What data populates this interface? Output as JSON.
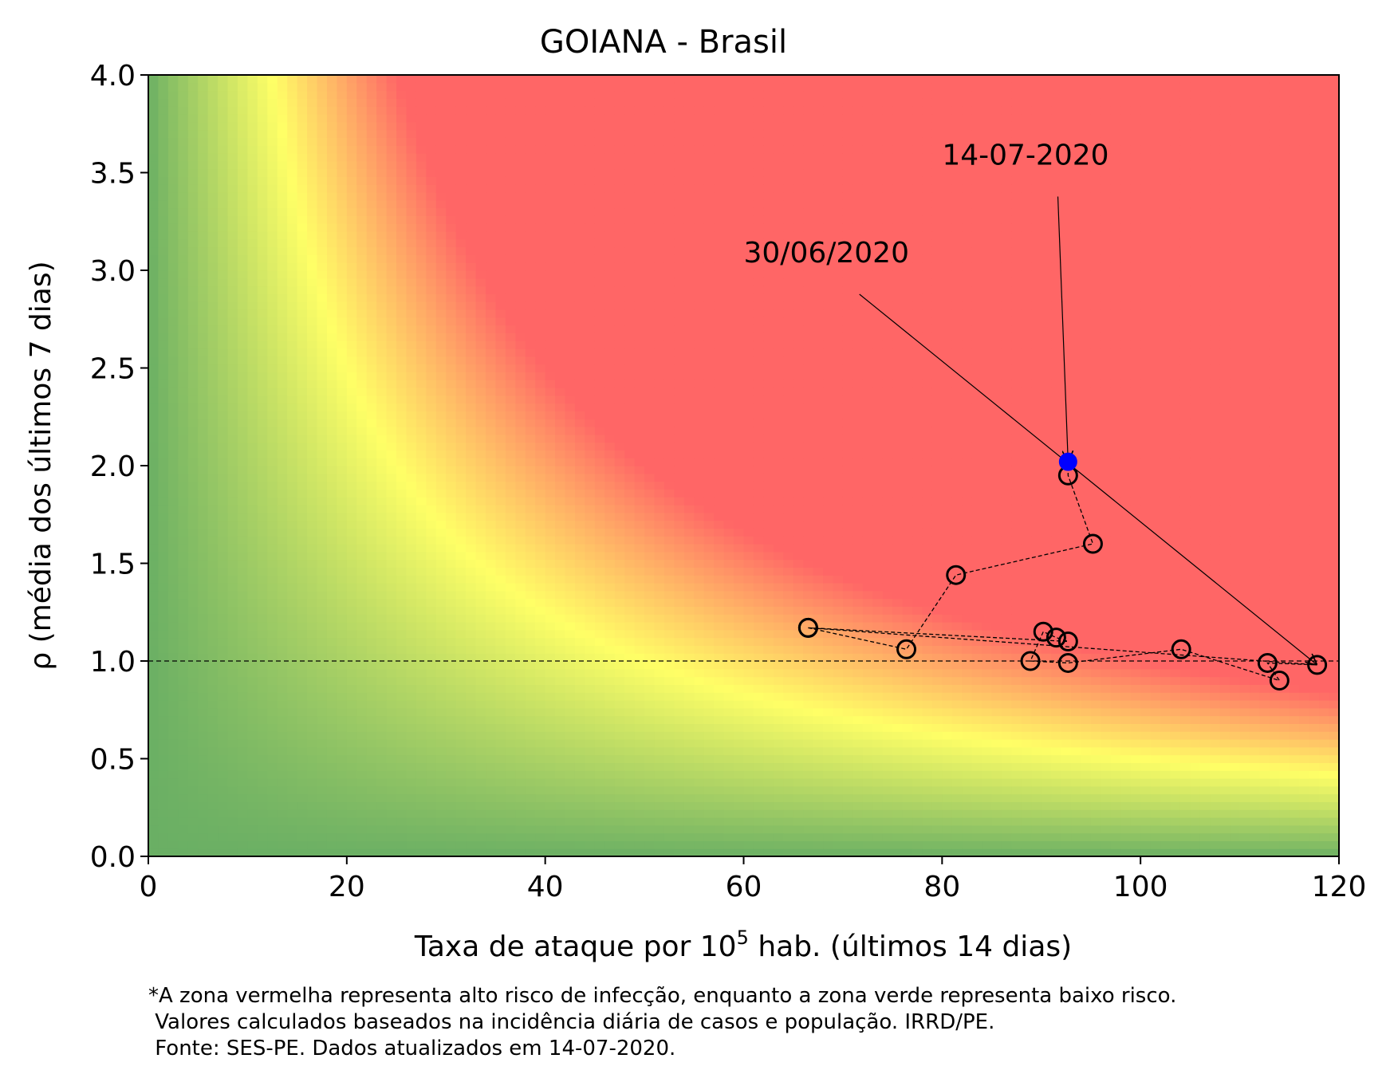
{
  "chart_data": {
    "type": "scatter",
    "title": "GOIANA - Brasil",
    "xlabel": "Taxa de ataque por 10",
    "xlabel_sup": "5",
    "xlabel_suffix": " hab. (últimos 14 dias)",
    "ylabel": "ρ (média dos últimos 7 dias)",
    "xlim": [
      0,
      120
    ],
    "ylim": [
      0,
      4
    ],
    "xticks": [
      0,
      20,
      40,
      60,
      80,
      100,
      120
    ],
    "yticks": [
      "0.0",
      "0.5",
      "1.0",
      "1.5",
      "2.0",
      "2.5",
      "3.0",
      "3.5",
      "4.0"
    ],
    "grid": false,
    "reference_line_y": 1.0,
    "background": "risk gradient: green (low) to yellow to red (high), based on x*y",
    "colors": {
      "green": "#6aaf64",
      "yellow": "#ffff66",
      "red": "#ff6666",
      "current_point": "#0000ff"
    },
    "series": [
      {
        "points": [
          {
            "x": 66.5,
            "y": 1.17
          },
          {
            "x": 92.7,
            "y": 1.1
          },
          {
            "x": 91.5,
            "y": 1.12
          },
          {
            "x": 90.2,
            "y": 1.15
          },
          {
            "x": 88.9,
            "y": 1.0
          },
          {
            "x": 92.7,
            "y": 0.99
          },
          {
            "x": 104.1,
            "y": 1.06
          },
          {
            "x": 114.0,
            "y": 0.9
          },
          {
            "x": 112.8,
            "y": 0.99
          },
          {
            "x": 117.8,
            "y": 0.98
          },
          {
            "x": 66.5,
            "y": 1.17
          },
          {
            "x": 76.4,
            "y": 1.06
          },
          {
            "x": 81.4,
            "y": 1.44
          },
          {
            "x": 95.2,
            "y": 1.6
          },
          {
            "x": 92.7,
            "y": 1.95
          },
          {
            "x": 92.7,
            "y": 2.02
          }
        ]
      }
    ],
    "annotations": [
      {
        "text": "30/06/2020",
        "text_x": 60,
        "text_y": 3.0,
        "target_x": 117.8,
        "target_y": 0.98
      },
      {
        "text": "14-07-2020",
        "text_x": 80,
        "text_y": 3.5,
        "target_x": 92.7,
        "target_y": 2.02
      }
    ]
  },
  "footnote": [
    "*A zona vermelha representa alto risco de infecção, enquanto a zona verde representa baixo risco.",
    " Valores calculados baseados na incidência diária de casos e população. IRRD/PE.",
    " Fonte: SES-PE. Dados atualizados em 14-07-2020."
  ]
}
